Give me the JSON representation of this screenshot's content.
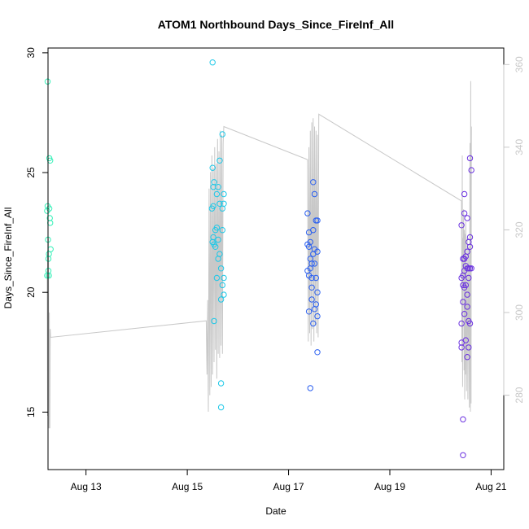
{
  "chart_data": {
    "type": "scatter",
    "title": "ATOM1 Northbound Days_Since_FireInf_All",
    "xlabel": "Date",
    "ylabel": "Days_Since_FireInf_All",
    "x_unit": "date (August)",
    "xlim": [
      "Aug 12 06:00",
      "Aug 21 06:00"
    ],
    "ylim": [
      12.6,
      30.2
    ],
    "y2lim": [
      262,
      364
    ],
    "x_ticks": [
      {
        "date": "Aug 13",
        "label": "Aug 13"
      },
      {
        "date": "Aug 15",
        "label": "Aug 15"
      },
      {
        "date": "Aug 17",
        "label": "Aug 17"
      },
      {
        "date": "Aug 19",
        "label": "Aug 19"
      },
      {
        "date": "Aug 21",
        "label": "Aug 21"
      }
    ],
    "y_ticks": [
      {
        "value": 15,
        "label": "15"
      },
      {
        "value": 20,
        "label": "20"
      },
      {
        "value": 25,
        "label": "25"
      },
      {
        "value": 30,
        "label": "30"
      }
    ],
    "y2_ticks": [
      {
        "value": 280,
        "label": "280"
      },
      {
        "value": 300,
        "label": "300"
      },
      {
        "value": 320,
        "label": "320"
      },
      {
        "value": 340,
        "label": "340"
      },
      {
        "value": 360,
        "label": "360"
      }
    ],
    "grid": false,
    "legend": "none",
    "points": [
      {
        "x": "Aug 12 05:35",
        "y": 23.4,
        "color": "#36f0b8"
      },
      {
        "x": "Aug 12 05:35",
        "y": 20.7,
        "color": "#36f0b8"
      },
      {
        "x": "Aug 12 05:48",
        "y": 28.8,
        "color": "#36f0b8"
      },
      {
        "x": "Aug 12 05:48",
        "y": 23.6,
        "color": "#36f0b8"
      },
      {
        "x": "Aug 12 06:00",
        "y": 22.2,
        "color": "#36f0b8"
      },
      {
        "x": "Aug 12 06:12",
        "y": 21.4,
        "color": "#36f0b8"
      },
      {
        "x": "Aug 12 06:12",
        "y": 20.9,
        "color": "#36f0b8"
      },
      {
        "x": "Aug 12 06:25",
        "y": 21.6,
        "color": "#36f0b8"
      },
      {
        "x": "Aug 12 06:25",
        "y": 20.7,
        "color": "#36f0b8"
      },
      {
        "x": "Aug 12 06:37",
        "y": 23.5,
        "color": "#36f0b8"
      },
      {
        "x": "Aug 12 06:37",
        "y": 25.6,
        "color": "#36f0b8"
      },
      {
        "x": "Aug 12 06:50",
        "y": 23.1,
        "color": "#36f0b8"
      },
      {
        "x": "Aug 12 07:02",
        "y": 25.5,
        "color": "#36f0b8"
      },
      {
        "x": "Aug 12 07:02",
        "y": 22.9,
        "color": "#36f0b8"
      },
      {
        "x": "Aug 12 07:14",
        "y": 21.8,
        "color": "#36f0b8"
      },
      {
        "x": "Aug 15 12:00",
        "y": 29.6,
        "color": "#1cc8e8"
      },
      {
        "x": "Aug 15 12:00",
        "y": 25.2,
        "color": "#1cc8e8"
      },
      {
        "x": "Aug 15 11:40",
        "y": 23.5,
        "color": "#1cc8e8"
      },
      {
        "x": "Aug 15 12:00",
        "y": 22.1,
        "color": "#1cc8e8"
      },
      {
        "x": "Aug 15 12:20",
        "y": 24.4,
        "color": "#1cc8e8"
      },
      {
        "x": "Aug 15 12:20",
        "y": 23.6,
        "color": "#1cc8e8"
      },
      {
        "x": "Aug 15 12:20",
        "y": 22.3,
        "color": "#1cc8e8"
      },
      {
        "x": "Aug 15 12:40",
        "y": 24.6,
        "color": "#1cc8e8"
      },
      {
        "x": "Aug 15 12:40",
        "y": 22.0,
        "color": "#1cc8e8"
      },
      {
        "x": "Aug 15 12:40",
        "y": 18.8,
        "color": "#1cc8e8"
      },
      {
        "x": "Aug 15 13:20",
        "y": 21.9,
        "color": "#1cc8e8"
      },
      {
        "x": "Aug 15 13:20",
        "y": 22.6,
        "color": "#1cc8e8"
      },
      {
        "x": "Aug 15 14:00",
        "y": 24.1,
        "color": "#1cc8e8"
      },
      {
        "x": "Aug 15 14:00",
        "y": 22.7,
        "color": "#1cc8e8"
      },
      {
        "x": "Aug 15 14:00",
        "y": 20.6,
        "color": "#1cc8e8"
      },
      {
        "x": "Aug 15 14:40",
        "y": 24.4,
        "color": "#1cc8e8"
      },
      {
        "x": "Aug 15 14:40",
        "y": 22.2,
        "color": "#1cc8e8"
      },
      {
        "x": "Aug 15 14:40",
        "y": 21.4,
        "color": "#1cc8e8"
      },
      {
        "x": "Aug 15 15:20",
        "y": 25.5,
        "color": "#1cc8e8"
      },
      {
        "x": "Aug 15 15:20",
        "y": 23.7,
        "color": "#1cc8e8"
      },
      {
        "x": "Aug 15 15:20",
        "y": 21.6,
        "color": "#1cc8e8"
      },
      {
        "x": "Aug 15 16:00",
        "y": 21.0,
        "color": "#1cc8e8"
      },
      {
        "x": "Aug 15 16:00",
        "y": 19.7,
        "color": "#1cc8e8"
      },
      {
        "x": "Aug 15 16:00",
        "y": 16.2,
        "color": "#1cc8e8"
      },
      {
        "x": "Aug 15 16:00",
        "y": 15.2,
        "color": "#1cc8e8"
      },
      {
        "x": "Aug 15 16:40",
        "y": 26.6,
        "color": "#1cc8e8"
      },
      {
        "x": "Aug 15 16:40",
        "y": 23.5,
        "color": "#1cc8e8"
      },
      {
        "x": "Aug 15 16:40",
        "y": 22.6,
        "color": "#1cc8e8"
      },
      {
        "x": "Aug 15 16:40",
        "y": 20.3,
        "color": "#1cc8e8"
      },
      {
        "x": "Aug 15 17:20",
        "y": 24.1,
        "color": "#1cc8e8"
      },
      {
        "x": "Aug 15 17:20",
        "y": 23.7,
        "color": "#1cc8e8"
      },
      {
        "x": "Aug 15 17:20",
        "y": 20.6,
        "color": "#1cc8e8"
      },
      {
        "x": "Aug 15 17:20",
        "y": 19.9,
        "color": "#1cc8e8"
      },
      {
        "x": "Aug 17 09:00",
        "y": 23.3,
        "color": "#2a5ff0"
      },
      {
        "x": "Aug 17 09:00",
        "y": 22.0,
        "color": "#2a5ff0"
      },
      {
        "x": "Aug 17 09:00",
        "y": 20.9,
        "color": "#2a5ff0"
      },
      {
        "x": "Aug 17 09:40",
        "y": 22.5,
        "color": "#2a5ff0"
      },
      {
        "x": "Aug 17 09:40",
        "y": 21.9,
        "color": "#2a5ff0"
      },
      {
        "x": "Aug 17 09:40",
        "y": 20.7,
        "color": "#2a5ff0"
      },
      {
        "x": "Aug 17 09:40",
        "y": 19.2,
        "color": "#2a5ff0"
      },
      {
        "x": "Aug 17 10:20",
        "y": 22.1,
        "color": "#2a5ff0"
      },
      {
        "x": "Aug 17 10:20",
        "y": 21.4,
        "color": "#2a5ff0"
      },
      {
        "x": "Aug 17 10:20",
        "y": 21.0,
        "color": "#2a5ff0"
      },
      {
        "x": "Aug 17 10:20",
        "y": 16.0,
        "color": "#2a5ff0"
      },
      {
        "x": "Aug 17 11:00",
        "y": 21.2,
        "color": "#2a5ff0"
      },
      {
        "x": "Aug 17 11:00",
        "y": 20.6,
        "color": "#2a5ff0"
      },
      {
        "x": "Aug 17 11:00",
        "y": 20.2,
        "color": "#2a5ff0"
      },
      {
        "x": "Aug 17 11:00",
        "y": 19.7,
        "color": "#2a5ff0"
      },
      {
        "x": "Aug 17 11:40",
        "y": 24.6,
        "color": "#2a5ff0"
      },
      {
        "x": "Aug 17 11:40",
        "y": 22.6,
        "color": "#2a5ff0"
      },
      {
        "x": "Aug 17 11:40",
        "y": 21.6,
        "color": "#2a5ff0"
      },
      {
        "x": "Aug 17 11:40",
        "y": 18.7,
        "color": "#2a5ff0"
      },
      {
        "x": "Aug 17 12:20",
        "y": 24.1,
        "color": "#2a5ff0"
      },
      {
        "x": "Aug 17 12:20",
        "y": 21.8,
        "color": "#2a5ff0"
      },
      {
        "x": "Aug 17 12:20",
        "y": 21.2,
        "color": "#2a5ff0"
      },
      {
        "x": "Aug 17 12:20",
        "y": 19.3,
        "color": "#2a5ff0"
      },
      {
        "x": "Aug 17 13:00",
        "y": 23.0,
        "color": "#2a5ff0"
      },
      {
        "x": "Aug 17 13:00",
        "y": 20.6,
        "color": "#2a5ff0"
      },
      {
        "x": "Aug 17 13:00",
        "y": 19.5,
        "color": "#2a5ff0"
      },
      {
        "x": "Aug 17 13:40",
        "y": 23.0,
        "color": "#2a5ff0"
      },
      {
        "x": "Aug 17 13:40",
        "y": 21.7,
        "color": "#2a5ff0"
      },
      {
        "x": "Aug 17 13:40",
        "y": 20.0,
        "color": "#2a5ff0"
      },
      {
        "x": "Aug 17 13:40",
        "y": 19.0,
        "color": "#2a5ff0"
      },
      {
        "x": "Aug 17 13:40",
        "y": 17.5,
        "color": "#2a5ff0"
      },
      {
        "x": "Aug 20 10:00",
        "y": 22.8,
        "color": "#6a30e0"
      },
      {
        "x": "Aug 20 10:00",
        "y": 20.6,
        "color": "#6a30e0"
      },
      {
        "x": "Aug 20 10:00",
        "y": 18.7,
        "color": "#6a30e0"
      },
      {
        "x": "Aug 20 10:00",
        "y": 17.9,
        "color": "#6a30e0"
      },
      {
        "x": "Aug 20 10:00",
        "y": 17.7,
        "color": "#6a30e0"
      },
      {
        "x": "Aug 20 10:40",
        "y": 21.4,
        "color": "#6a30e0"
      },
      {
        "x": "Aug 20 10:40",
        "y": 20.7,
        "color": "#6a30e0"
      },
      {
        "x": "Aug 20 10:40",
        "y": 20.3,
        "color": "#6a30e0"
      },
      {
        "x": "Aug 20 10:40",
        "y": 19.6,
        "color": "#6a30e0"
      },
      {
        "x": "Aug 20 10:40",
        "y": 14.7,
        "color": "#6a30e0"
      },
      {
        "x": "Aug 20 10:40",
        "y": 13.2,
        "color": "#6a30e0"
      },
      {
        "x": "Aug 20 11:20",
        "y": 24.1,
        "color": "#6a30e0"
      },
      {
        "x": "Aug 20 11:20",
        "y": 23.3,
        "color": "#6a30e0"
      },
      {
        "x": "Aug 20 11:20",
        "y": 21.4,
        "color": "#6a30e0"
      },
      {
        "x": "Aug 20 11:20",
        "y": 20.9,
        "color": "#6a30e0"
      },
      {
        "x": "Aug 20 11:20",
        "y": 20.2,
        "color": "#6a30e0"
      },
      {
        "x": "Aug 20 11:20",
        "y": 19.1,
        "color": "#6a30e0"
      },
      {
        "x": "Aug 20 12:00",
        "y": 21.5,
        "color": "#6a30e0"
      },
      {
        "x": "Aug 20 12:00",
        "y": 21.1,
        "color": "#6a30e0"
      },
      {
        "x": "Aug 20 12:00",
        "y": 20.3,
        "color": "#6a30e0"
      },
      {
        "x": "Aug 20 12:00",
        "y": 18.0,
        "color": "#6a30e0"
      },
      {
        "x": "Aug 20 12:40",
        "y": 23.1,
        "color": "#6a30e0"
      },
      {
        "x": "Aug 20 12:40",
        "y": 21.7,
        "color": "#6a30e0"
      },
      {
        "x": "Aug 20 12:40",
        "y": 21.0,
        "color": "#6a30e0"
      },
      {
        "x": "Aug 20 12:40",
        "y": 19.9,
        "color": "#6a30e0"
      },
      {
        "x": "Aug 20 12:40",
        "y": 19.4,
        "color": "#6a30e0"
      },
      {
        "x": "Aug 20 12:40",
        "y": 17.3,
        "color": "#6a30e0"
      },
      {
        "x": "Aug 20 13:20",
        "y": 22.1,
        "color": "#6a30e0"
      },
      {
        "x": "Aug 20 13:20",
        "y": 21.0,
        "color": "#6a30e0"
      },
      {
        "x": "Aug 20 13:20",
        "y": 20.6,
        "color": "#6a30e0"
      },
      {
        "x": "Aug 20 13:20",
        "y": 18.8,
        "color": "#6a30e0"
      },
      {
        "x": "Aug 20 13:20",
        "y": 17.7,
        "color": "#6a30e0"
      },
      {
        "x": "Aug 20 14:00",
        "y": 25.6,
        "color": "#6a30e0"
      },
      {
        "x": "Aug 20 14:00",
        "y": 22.3,
        "color": "#6a30e0"
      },
      {
        "x": "Aug 20 14:00",
        "y": 21.9,
        "color": "#6a30e0"
      },
      {
        "x": "Aug 20 14:00",
        "y": 21.0,
        "color": "#6a30e0"
      },
      {
        "x": "Aug 20 14:00",
        "y": 18.7,
        "color": "#6a30e0"
      },
      {
        "x": "Aug 20 14:40",
        "y": 25.1,
        "color": "#6a30e0"
      },
      {
        "x": "Aug 20 14:40",
        "y": 21.0,
        "color": "#6a30e0"
      }
    ],
    "secondary_line": {
      "color": "#c8c8c8",
      "axis": "right",
      "points": [
        [
          "Aug 12 05:35",
          310
        ],
        [
          "Aug 12 05:48",
          275
        ],
        [
          "Aug 12 05:48",
          315
        ],
        [
          "Aug 12 06:00",
          280
        ],
        [
          "Aug 12 06:12",
          318
        ],
        [
          "Aug 12 06:25",
          272
        ],
        [
          "Aug 12 06:37",
          300
        ],
        [
          "Aug 12 06:50",
          272
        ],
        [
          "Aug 12 07:02",
          296
        ],
        [
          "Aug 12 07:14",
          294
        ],
        [
          "Aug 15 09:00",
          298
        ],
        [
          "Aug 15 09:20",
          285
        ],
        [
          "Aug 15 09:40",
          303
        ],
        [
          "Aug 15 10:00",
          276
        ],
        [
          "Aug 15 10:20",
          330
        ],
        [
          "Aug 15 10:40",
          280
        ],
        [
          "Aug 15 11:00",
          334
        ],
        [
          "Aug 15 11:20",
          282
        ],
        [
          "Aug 15 11:40",
          338
        ],
        [
          "Aug 15 12:00",
          285
        ],
        [
          "Aug 15 12:20",
          335
        ],
        [
          "Aug 15 12:40",
          288
        ],
        [
          "Aug 15 13:00",
          340
        ],
        [
          "Aug 15 13:20",
          291
        ],
        [
          "Aug 15 13:40",
          336
        ],
        [
          "Aug 15 14:00",
          284
        ],
        [
          "Aug 15 14:20",
          342
        ],
        [
          "Aug 15 14:40",
          290
        ],
        [
          "Aug 15 15:00",
          339
        ],
        [
          "Aug 15 15:20",
          289
        ],
        [
          "Aug 15 15:40",
          344
        ],
        [
          "Aug 15 16:00",
          292
        ],
        [
          "Aug 15 16:20",
          343
        ],
        [
          "Aug 15 16:40",
          290
        ],
        [
          "Aug 15 17:00",
          341
        ],
        [
          "Aug 15 17:20",
          345
        ],
        [
          "Aug 17 09:00",
          337
        ],
        [
          "Aug 17 09:20",
          293
        ],
        [
          "Aug 17 09:40",
          340
        ],
        [
          "Aug 17 10:00",
          295
        ],
        [
          "Aug 17 10:20",
          344
        ],
        [
          "Aug 17 10:40",
          292
        ],
        [
          "Aug 17 11:00",
          346
        ],
        [
          "Aug 17 11:20",
          296
        ],
        [
          "Aug 17 11:40",
          347
        ],
        [
          "Aug 17 12:00",
          293
        ],
        [
          "Aug 17 12:20",
          345
        ],
        [
          "Aug 17 12:40",
          297
        ],
        [
          "Aug 17 13:00",
          344
        ],
        [
          "Aug 17 13:20",
          295
        ],
        [
          "Aug 17 13:40",
          343
        ],
        [
          "Aug 17 14:00",
          294
        ],
        [
          "Aug 17 14:20",
          348
        ],
        [
          "Aug 20 10:00",
          327
        ],
        [
          "Aug 20 10:10",
          288
        ],
        [
          "Aug 20 10:20",
          338
        ],
        [
          "Aug 20 10:30",
          282
        ],
        [
          "Aug 20 10:40",
          318
        ],
        [
          "Aug 20 10:50",
          310
        ],
        [
          "Aug 20 11:00",
          325
        ],
        [
          "Aug 20 11:10",
          286
        ],
        [
          "Aug 20 11:20",
          320
        ],
        [
          "Aug 20 11:30",
          279
        ],
        [
          "Aug 20 11:40",
          319
        ],
        [
          "Aug 20 11:50",
          285
        ],
        [
          "Aug 20 12:00",
          322
        ],
        [
          "Aug 20 12:20",
          281
        ],
        [
          "Aug 20 12:40",
          318
        ],
        [
          "Aug 20 13:00",
          279
        ],
        [
          "Aug 20 13:20",
          316
        ],
        [
          "Aug 20 13:40",
          277
        ],
        [
          "Aug 20 14:00",
          341
        ],
        [
          "Aug 20 14:10",
          276
        ],
        [
          "Aug 20 14:20",
          356
        ],
        [
          "Aug 20 14:30",
          278
        ],
        [
          "Aug 20 14:40",
          345
        ]
      ]
    }
  }
}
